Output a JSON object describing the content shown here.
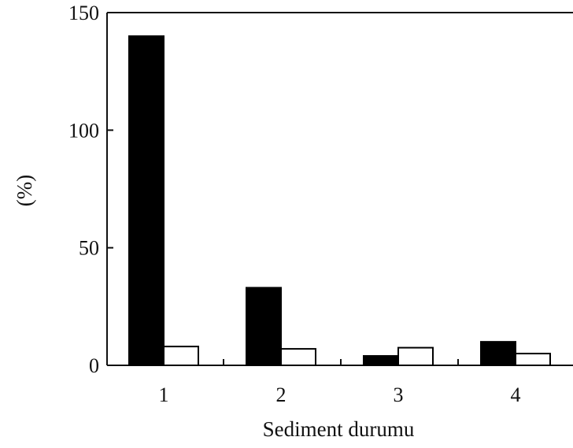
{
  "chart_data": {
    "type": "bar",
    "title": "",
    "xlabel": "Sediment durumu",
    "ylabel": "(%)",
    "categories": [
      "1",
      "2",
      "3",
      "4"
    ],
    "series": [
      {
        "values": [
          140,
          33,
          4,
          10
        ],
        "color": "#000000",
        "fill": "solid"
      },
      {
        "values": [
          8,
          7,
          7.5,
          5
        ],
        "color": "#ffffff",
        "fill": "outline"
      }
    ],
    "ylim": [
      0,
      150
    ],
    "yticks": [
      0,
      50,
      100,
      150
    ],
    "grid": false,
    "legend": "none"
  }
}
